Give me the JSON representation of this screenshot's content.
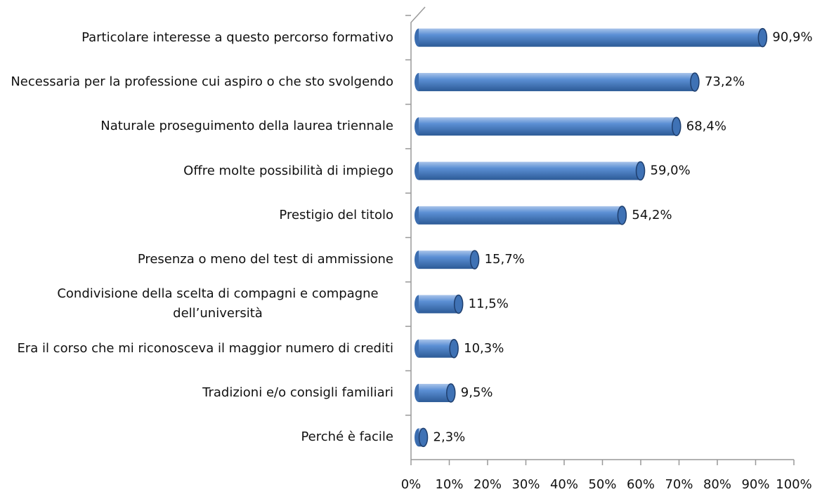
{
  "chart_data": {
    "type": "bar",
    "orientation": "horizontal",
    "categories": [
      "Particolare interesse a questo percorso formativo",
      "Necessaria per la professione cui aspiro o che sto svolgendo",
      "Naturale proseguimento della laurea triennale",
      "Offre molte possibilità di impiego",
      "Prestigio del titolo",
      "Presenza o meno del test di ammissione",
      "Condivisione della scelta di compagni e compagne\ndell’università",
      "Era il corso che mi riconosceva il maggior numero di crediti",
      "Tradizioni e/o consigli familiari",
      "Perché è facile"
    ],
    "values": [
      90.9,
      73.2,
      68.4,
      59.0,
      54.2,
      15.7,
      11.5,
      10.3,
      9.5,
      2.3
    ],
    "value_labels": [
      "90,9%",
      "73,2%",
      "68,4%",
      "59,0%",
      "54,2%",
      "15,7%",
      "11,5%",
      "10,3%",
      "9,5%",
      "2,3%"
    ],
    "color": "#4f81bd",
    "xlim": [
      0,
      100
    ],
    "xticks": [
      {
        "value": 0,
        "label": "0%"
      },
      {
        "value": 10,
        "label": "10%"
      },
      {
        "value": 20,
        "label": "20%"
      },
      {
        "value": 30,
        "label": "30%"
      },
      {
        "value": 40,
        "label": "40%"
      },
      {
        "value": 50,
        "label": "50%"
      },
      {
        "value": 60,
        "label": "60%"
      },
      {
        "value": 70,
        "label": "70%"
      },
      {
        "value": 80,
        "label": "80%"
      },
      {
        "value": 90,
        "label": "90%"
      },
      {
        "value": 100,
        "label": "100%"
      }
    ],
    "grid": false
  }
}
